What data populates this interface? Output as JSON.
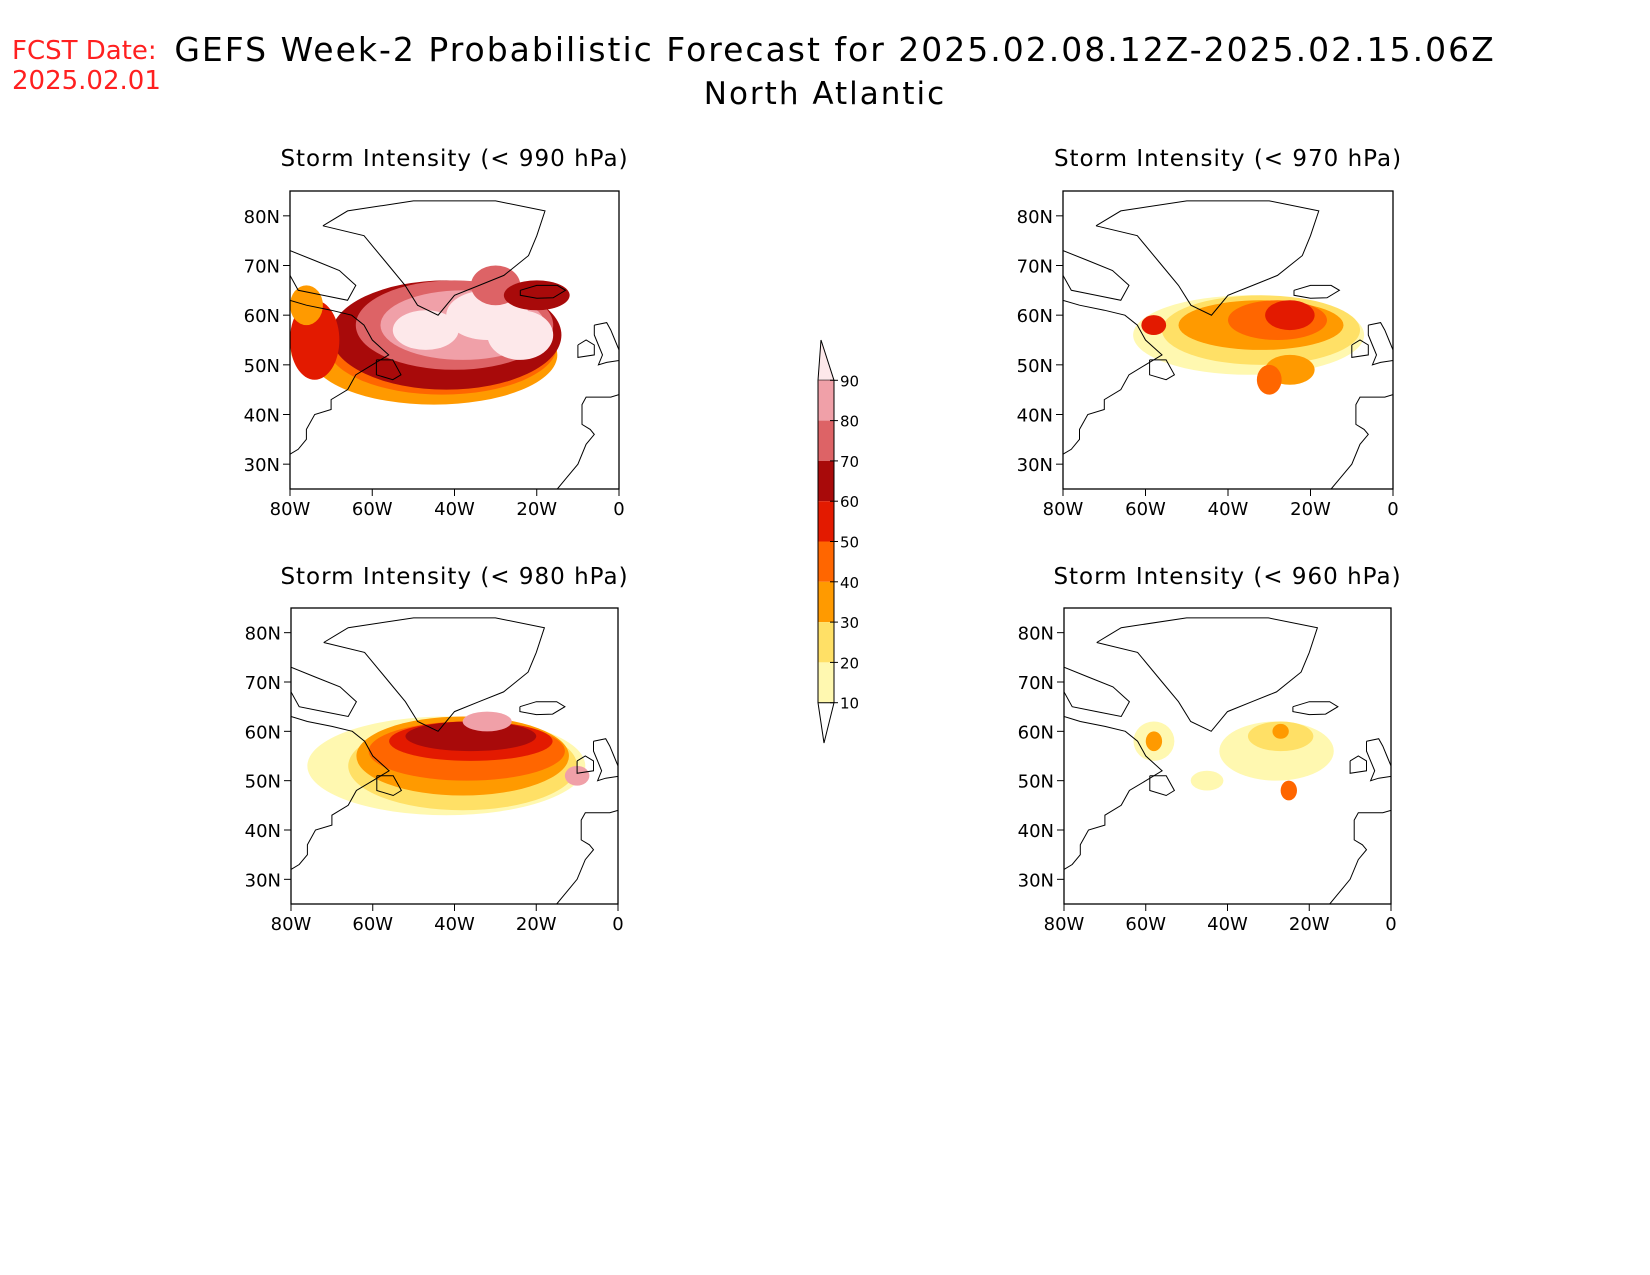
{
  "fcst_date": {
    "label": "FCST Date:",
    "value": "2025.02.01"
  },
  "title": "GEFS Week-2 Probabilistic Forecast for 2025.02.08.12Z-2025.02.15.06Z",
  "subtitle": "North Atlantic",
  "axes": {
    "lat_ticks": [
      "80N",
      "70N",
      "60N",
      "50N",
      "40N",
      "30N"
    ],
    "lon_ticks": [
      "80W",
      "60W",
      "40W",
      "20W",
      "0"
    ]
  },
  "panels": [
    {
      "title": "Storm Intensity (< 990 hPa)"
    },
    {
      "title": "Storm Intensity (< 970 hPa)"
    },
    {
      "title": "Storm Intensity (< 980 hPa)"
    },
    {
      "title": "Storm Intensity (< 960 hPa)"
    }
  ],
  "colorbar": {
    "levels": [
      "90",
      "80",
      "70",
      "60",
      "50",
      "40",
      "30",
      "20",
      "10"
    ],
    "colors": [
      "#fde8ea",
      "#f0a0a8",
      "#dd6366",
      "#a80a0a",
      "#e31a00",
      "#ff6600",
      "#ff9a00",
      "#ffe066",
      "#fff8b0"
    ]
  },
  "chart_data": {
    "type": "heatmap",
    "variable": "Storm Intensity",
    "thresholds_hpa": [
      990,
      970,
      980,
      960
    ],
    "lat_range": [
      25,
      85
    ],
    "lon_range": [
      -80,
      0
    ]
  }
}
